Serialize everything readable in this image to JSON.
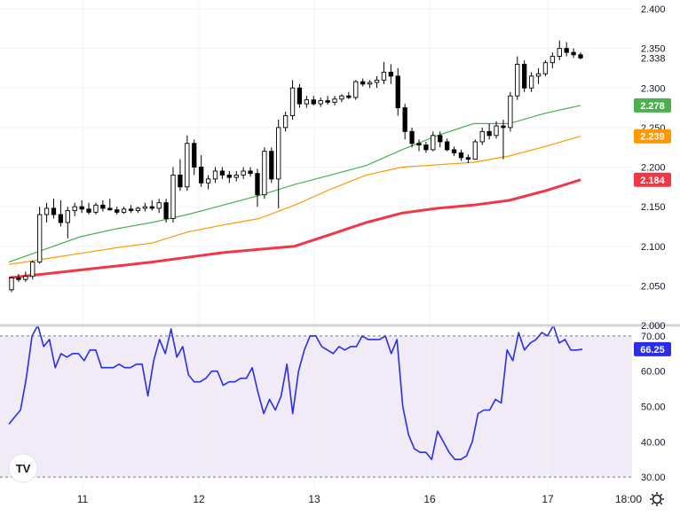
{
  "chart_data": [
    {
      "type": "candlestick",
      "title": "",
      "xlabel": "",
      "ylabel": "",
      "ylim": [
        2.0,
        2.4
      ],
      "y_ticks": [
        "2.400",
        "2.350",
        "2.300",
        "2.250",
        "2.200",
        "2.150",
        "2.100",
        "2.050",
        "2.000"
      ],
      "x_ticks": [
        "11",
        "12",
        "13",
        "16",
        "17",
        "18:00"
      ],
      "grid": true,
      "last_price": "2.338",
      "colors": {
        "up": "#26a69a",
        "down": "#000000",
        "candle_up_fill": "#ffffff",
        "candle_down_fill": "#000000"
      },
      "candles": [
        [
          2.045,
          2.062,
          2.042,
          2.06
        ],
        [
          2.06,
          2.065,
          2.055,
          2.058
        ],
        [
          2.058,
          2.068,
          2.055,
          2.062
        ],
        [
          2.062,
          2.082,
          2.058,
          2.08
        ],
        [
          2.08,
          2.15,
          2.078,
          2.14
        ],
        [
          2.14,
          2.155,
          2.13,
          2.148
        ],
        [
          2.148,
          2.16,
          2.135,
          2.14
        ],
        [
          2.14,
          2.158,
          2.125,
          2.13
        ],
        [
          2.13,
          2.15,
          2.11,
          2.145
        ],
        [
          2.145,
          2.155,
          2.138,
          2.15
        ],
        [
          2.15,
          2.158,
          2.142,
          2.147
        ],
        [
          2.147,
          2.155,
          2.14,
          2.143
        ],
        [
          2.143,
          2.155,
          2.14,
          2.152
        ],
        [
          2.152,
          2.158,
          2.144,
          2.148
        ],
        [
          2.148,
          2.16,
          2.145,
          2.146
        ],
        [
          2.146,
          2.15,
          2.14,
          2.143
        ],
        [
          2.143,
          2.15,
          2.141,
          2.147
        ],
        [
          2.147,
          2.152,
          2.142,
          2.145
        ],
        [
          2.145,
          2.15,
          2.142,
          2.148
        ],
        [
          2.148,
          2.155,
          2.144,
          2.15
        ],
        [
          2.15,
          2.158,
          2.145,
          2.148
        ],
        [
          2.148,
          2.16,
          2.142,
          2.155
        ],
        [
          2.155,
          2.16,
          2.13,
          2.135
        ],
        [
          2.135,
          2.2,
          2.13,
          2.19
        ],
        [
          2.19,
          2.21,
          2.17,
          2.175
        ],
        [
          2.175,
          2.24,
          2.17,
          2.23
        ],
        [
          2.23,
          2.235,
          2.19,
          2.2
        ],
        [
          2.2,
          2.215,
          2.175,
          2.18
        ],
        [
          2.18,
          2.19,
          2.172,
          2.185
        ],
        [
          2.185,
          2.2,
          2.18,
          2.195
        ],
        [
          2.195,
          2.2,
          2.185,
          2.19
        ],
        [
          2.19,
          2.195,
          2.18,
          2.187
        ],
        [
          2.187,
          2.195,
          2.182,
          2.19
        ],
        [
          2.19,
          2.2,
          2.185,
          2.195
        ],
        [
          2.195,
          2.2,
          2.188,
          2.192
        ],
        [
          2.192,
          2.198,
          2.15,
          2.165
        ],
        [
          2.165,
          2.225,
          2.16,
          2.22
        ],
        [
          2.22,
          2.225,
          2.18,
          2.185
        ],
        [
          2.185,
          2.26,
          2.148,
          2.25
        ],
        [
          2.25,
          2.27,
          2.245,
          2.265
        ],
        [
          2.265,
          2.31,
          2.26,
          2.3
        ],
        [
          2.3,
          2.305,
          2.275,
          2.28
        ],
        [
          2.28,
          2.29,
          2.275,
          2.285
        ],
        [
          2.285,
          2.29,
          2.278,
          2.28
        ],
        [
          2.28,
          2.288,
          2.276,
          2.284
        ],
        [
          2.284,
          2.29,
          2.279,
          2.282
        ],
        [
          2.282,
          2.29,
          2.278,
          2.286
        ],
        [
          2.286,
          2.292,
          2.282,
          2.29
        ],
        [
          2.29,
          2.295,
          2.286,
          2.288
        ],
        [
          2.288,
          2.31,
          2.285,
          2.308
        ],
        [
          2.308,
          2.312,
          2.302,
          2.305
        ],
        [
          2.305,
          2.31,
          2.3,
          2.307
        ],
        [
          2.307,
          2.315,
          2.3,
          2.31
        ],
        [
          2.31,
          2.333,
          2.305,
          2.32
        ],
        [
          2.32,
          2.33,
          2.305,
          2.315
        ],
        [
          2.315,
          2.325,
          2.265,
          2.275
        ],
        [
          2.275,
          2.28,
          2.235,
          2.245
        ],
        [
          2.245,
          2.25,
          2.225,
          2.23
        ],
        [
          2.23,
          2.235,
          2.22,
          2.228
        ],
        [
          2.228,
          2.232,
          2.218,
          2.222
        ],
        [
          2.222,
          2.245,
          2.22,
          2.24
        ],
        [
          2.24,
          2.245,
          2.225,
          2.232
        ],
        [
          2.232,
          2.236,
          2.22,
          2.222
        ],
        [
          2.222,
          2.226,
          2.214,
          2.218
        ],
        [
          2.218,
          2.222,
          2.208,
          2.212
        ],
        [
          2.212,
          2.216,
          2.205,
          2.21
        ],
        [
          2.21,
          2.235,
          2.21,
          2.232
        ],
        [
          2.232,
          2.25,
          2.228,
          2.245
        ],
        [
          2.245,
          2.255,
          2.235,
          2.24
        ],
        [
          2.24,
          2.258,
          2.236,
          2.252
        ],
        [
          2.252,
          2.26,
          2.21,
          2.25
        ],
        [
          2.25,
          2.295,
          2.245,
          2.29
        ],
        [
          2.29,
          2.34,
          2.285,
          2.33
        ],
        [
          2.33,
          2.335,
          2.295,
          2.3
        ],
        [
          2.3,
          2.32,
          2.295,
          2.315
        ],
        [
          2.315,
          2.325,
          2.305,
          2.318
        ],
        [
          2.318,
          2.335,
          2.315,
          2.332
        ],
        [
          2.332,
          2.345,
          2.325,
          2.34
        ],
        [
          2.34,
          2.36,
          2.335,
          2.35
        ],
        [
          2.35,
          2.358,
          2.34,
          2.345
        ],
        [
          2.345,
          2.35,
          2.338,
          2.342
        ],
        [
          2.342,
          2.345,
          2.336,
          2.338
        ]
      ],
      "moving_averages": [
        {
          "color": "#4caf50",
          "last": "2.278",
          "values": [
            2.08,
            2.096,
            2.112,
            2.122,
            2.13,
            2.14,
            2.152,
            2.164,
            2.178,
            2.19,
            2.202,
            2.222,
            2.24,
            2.255,
            2.255,
            2.268,
            2.278
          ]
        },
        {
          "color": "#ff9800",
          "last": "2.239",
          "values": [
            2.077,
            2.084,
            2.091,
            2.098,
            2.104,
            2.118,
            2.127,
            2.135,
            2.152,
            2.172,
            2.19,
            2.2,
            2.203,
            2.206,
            2.214,
            2.226,
            2.239
          ]
        },
        {
          "color": "#f23645",
          "last": "2.184",
          "values": [
            2.06,
            2.065,
            2.07,
            2.075,
            2.08,
            2.086,
            2.092,
            2.096,
            2.1,
            2.115,
            2.13,
            2.142,
            2.148,
            2.152,
            2.158,
            2.17,
            2.184
          ]
        }
      ]
    },
    {
      "type": "line",
      "title": "",
      "xlabel": "",
      "ylabel": "",
      "ylim": [
        27,
        73
      ],
      "y_ticks": [
        "70.00",
        "60.00",
        "50.00",
        "40.00",
        "30.00"
      ],
      "band": [
        30,
        70
      ],
      "last_value": "66.25",
      "series": [
        {
          "color": "#2a2ee6",
          "values": [
            45,
            47,
            49,
            58,
            70,
            73,
            67,
            69,
            61,
            65,
            64,
            65,
            65,
            63,
            66,
            66,
            61,
            61,
            61,
            62,
            61,
            61,
            62,
            62,
            53,
            63,
            69,
            65,
            72,
            64,
            67,
            59,
            57,
            57,
            58,
            60,
            60,
            56,
            57,
            57,
            58,
            58,
            61,
            54,
            48,
            52,
            49,
            53,
            62,
            48,
            60,
            66,
            70,
            70,
            67,
            66,
            65,
            67,
            66,
            67,
            67,
            70,
            69,
            69,
            69,
            70,
            65,
            69,
            50,
            42,
            38,
            37,
            37,
            35,
            43,
            40,
            37,
            35,
            35,
            36,
            40,
            48,
            49,
            49,
            52,
            51,
            66,
            63,
            71,
            66,
            68,
            69,
            71,
            70,
            73,
            68,
            69,
            66,
            66,
            66.25
          ]
        }
      ]
    }
  ],
  "watermark": "TV"
}
